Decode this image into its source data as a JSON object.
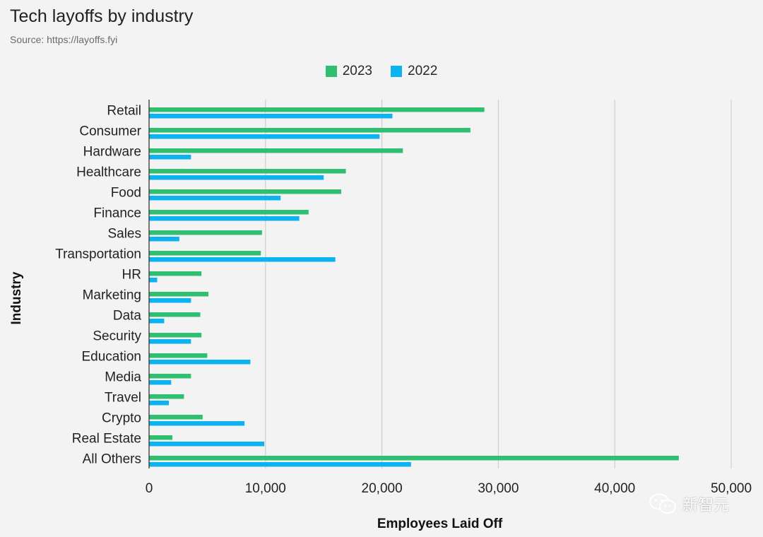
{
  "title": "Tech layoffs by industry",
  "subtitle": "Source: https://layoffs.fyi",
  "watermark": "新智元",
  "chart_data": {
    "type": "bar",
    "orientation": "horizontal",
    "title": "Tech layoffs by industry",
    "subtitle": "Source: https://layoffs.fyi",
    "xlabel": "Employees Laid Off",
    "ylabel": "Industry",
    "xlim": [
      0,
      50000
    ],
    "xticks": [
      0,
      10000,
      20000,
      30000,
      40000,
      50000
    ],
    "xtick_labels": [
      "0",
      "10,000",
      "20,000",
      "30,000",
      "40,000",
      "50,000"
    ],
    "grid": true,
    "legend_position": "top-center",
    "categories": [
      "Retail",
      "Consumer",
      "Hardware",
      "Healthcare",
      "Food",
      "Finance",
      "Sales",
      "Transportation",
      "HR",
      "Marketing",
      "Data",
      "Security",
      "Education",
      "Media",
      "Travel",
      "Crypto",
      "Real Estate",
      "All Others"
    ],
    "series": [
      {
        "name": "2023",
        "color": "#2fbf71",
        "values": [
          28800,
          27600,
          21800,
          16900,
          16500,
          13700,
          9700,
          9600,
          4500,
          5100,
          4400,
          4500,
          5000,
          3600,
          3000,
          4600,
          2000,
          45500
        ]
      },
      {
        "name": "2022",
        "color": "#0db2f0",
        "values": [
          20900,
          19800,
          3600,
          15000,
          11300,
          12900,
          2600,
          16000,
          700,
          3600,
          1300,
          3600,
          8700,
          1900,
          1700,
          8200,
          9900,
          22500
        ]
      }
    ]
  }
}
